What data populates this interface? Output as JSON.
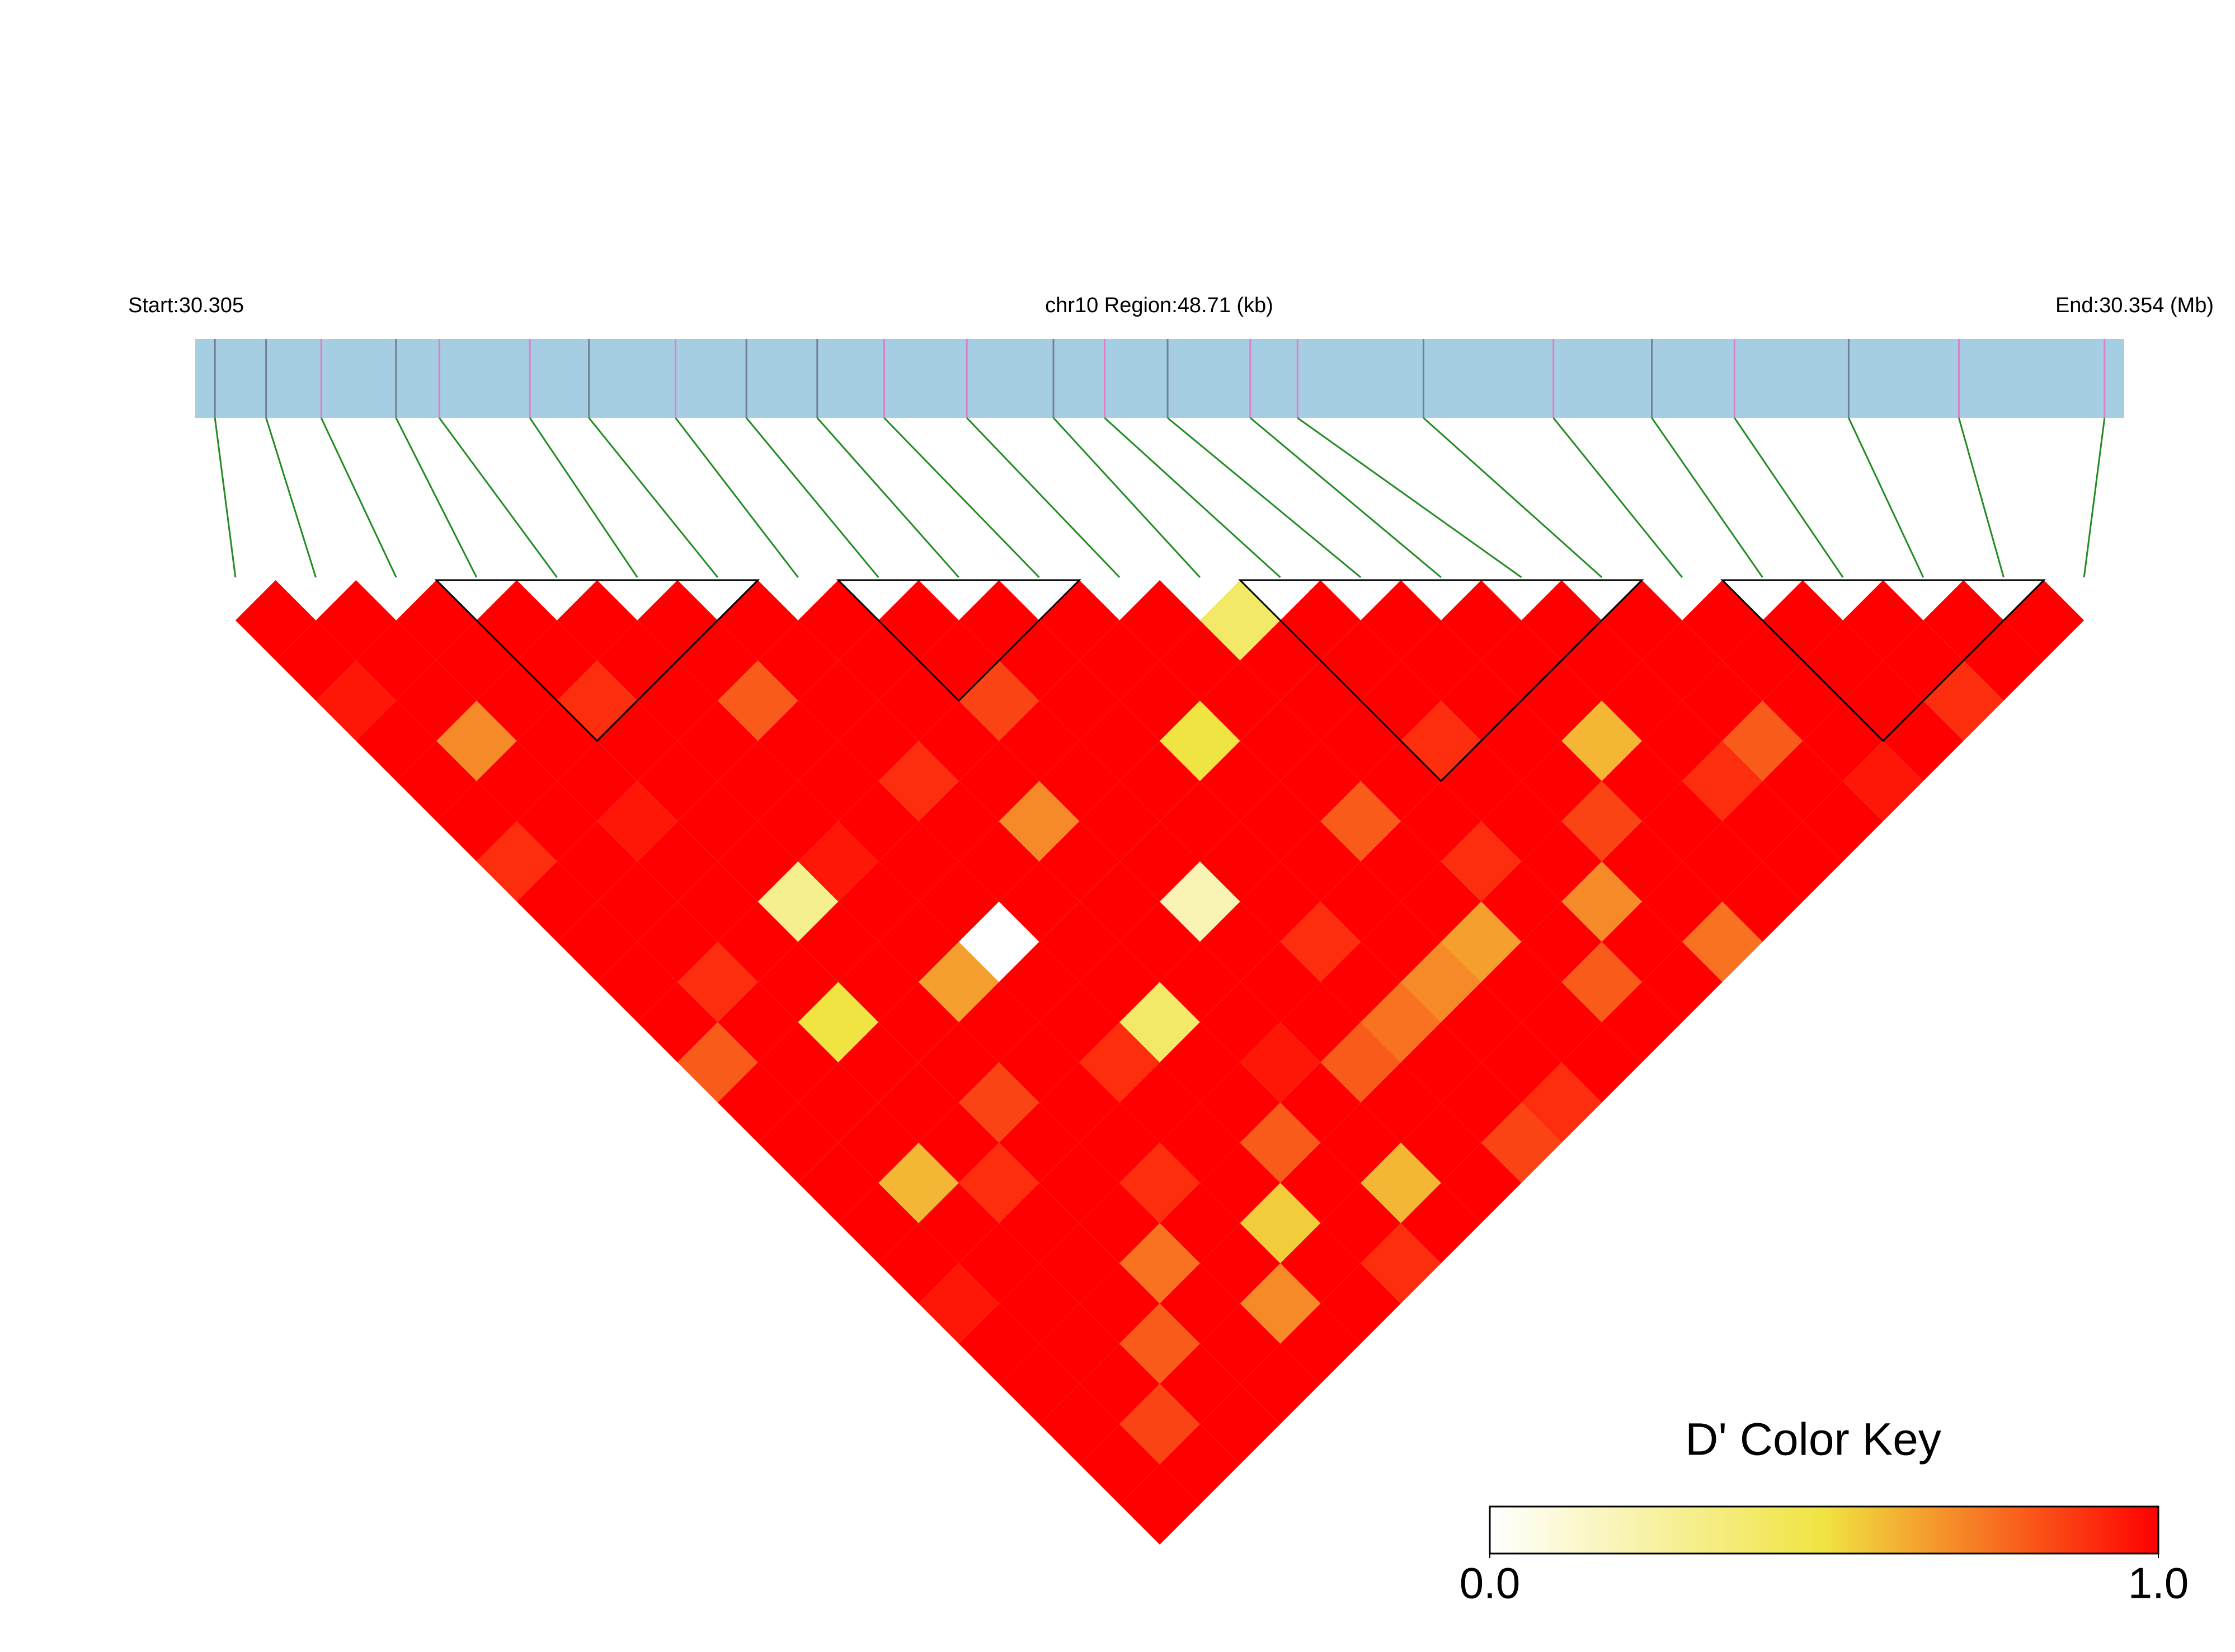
{
  "chart_data": {
    "type": "ld-heatmap",
    "start_label": "Start:30.305",
    "region_label": "chr10 Region:48.71 (kb)",
    "end_label": "End:30.354 (Mb)",
    "xlim": [
      30.305,
      30.354
    ],
    "track_color": "#a6cee3",
    "connector_color": "#228b22",
    "snp_positions": [
      30.3055,
      30.3068,
      30.3082,
      30.3101,
      30.3112,
      30.3135,
      30.315,
      30.3172,
      30.319,
      30.3208,
      30.3225,
      30.3246,
      30.3268,
      30.3281,
      30.3297,
      30.3318,
      30.333,
      30.3362,
      30.3395,
      30.342,
      30.3441,
      30.347,
      30.3498,
      30.3535
    ],
    "snp_colors": [
      "#708090",
      "#708090",
      "#e07cc8",
      "#708090",
      "#e07cc8",
      "#e07cc8",
      "#708090",
      "#e07cc8",
      "#708090",
      "#708090",
      "#e07cc8",
      "#e07cc8",
      "#708090",
      "#e07cc8",
      "#708090",
      "#e07cc8",
      "#e07cc8",
      "#708090",
      "#e07cc8",
      "#708090",
      "#e07cc8",
      "#708090",
      "#e07cc8",
      "#e07cc8"
    ],
    "matrix": [
      [
        1,
        1,
        0.95,
        1,
        1,
        1,
        0.9,
        1,
        1,
        1,
        1,
        0.8,
        1,
        1,
        1,
        1,
        1,
        0.95,
        1,
        1,
        1,
        1,
        1
      ],
      [
        1,
        1,
        1,
        0.7,
        1,
        1,
        1,
        1,
        1,
        0.9,
        1,
        1,
        1,
        1,
        0.6,
        1,
        1,
        1,
        1,
        1,
        0.85,
        1
      ],
      [
        1,
        1,
        1,
        1,
        1,
        0.95,
        1,
        1,
        1,
        1,
        0.5,
        1,
        1,
        1,
        0.9,
        1,
        1,
        1,
        0.8,
        1,
        1
      ],
      [
        1,
        1,
        0.9,
        1,
        1,
        1,
        1,
        0.3,
        1,
        1,
        1,
        1,
        0.85,
        1,
        1,
        1,
        0.75,
        1,
        1,
        1
      ],
      [
        1,
        1,
        1,
        1,
        1,
        1,
        0.95,
        1,
        1,
        0.65,
        1,
        1,
        1,
        1,
        0.9,
        1,
        1,
        0.7,
        1
      ],
      [
        1,
        1,
        0.8,
        1,
        1,
        1,
        1,
        1,
        0,
        1,
        1,
        0.9,
        1,
        1,
        1,
        0.55,
        1,
        1
      ],
      [
        1,
        1,
        1,
        1,
        0.9,
        1,
        1,
        1,
        1,
        1,
        0.4,
        1,
        1,
        0.8,
        1,
        1,
        0.9
      ],
      [
        1,
        1,
        1,
        1,
        1,
        0.7,
        1,
        1,
        1,
        1,
        1,
        0.95,
        1,
        1,
        0.6,
        1
      ],
      [
        1,
        1,
        0.85,
        1,
        1,
        1,
        1,
        0.2,
        1,
        1,
        1,
        0.8,
        1,
        1,
        1
      ],
      [
        1,
        1,
        1,
        1,
        1,
        1,
        1,
        1,
        0.9,
        1,
        0.75,
        1,
        1,
        0.85
      ],
      [
        1,
        1,
        1,
        0.5,
        1,
        1,
        1,
        1,
        1,
        0.7,
        1,
        1,
        0.9
      ],
      [
        1,
        1,
        1,
        1,
        1,
        0.8,
        1,
        1,
        0.65,
        1,
        1,
        1
      ],
      [
        0.4,
        1,
        1,
        1,
        1,
        1,
        0.9,
        1,
        1,
        0.8,
        1
      ],
      [
        1,
        1,
        1,
        0.9,
        1,
        1,
        1,
        0.7,
        1,
        1
      ],
      [
        1,
        1,
        1,
        1,
        1,
        0.85,
        1,
        1,
        0.75
      ],
      [
        1,
        1,
        1,
        0.6,
        1,
        1,
        1,
        1
      ],
      [
        1,
        1,
        1,
        1,
        0.9,
        1,
        1
      ],
      [
        1,
        1,
        1,
        0.8,
        1,
        1
      ],
      [
        1,
        1,
        1,
        1,
        0.95
      ],
      [
        1,
        1,
        1,
        1
      ],
      [
        1,
        1,
        0.9
      ],
      [
        1,
        1
      ],
      [
        1
      ]
    ],
    "blocks": [
      [
        3,
        6
      ],
      [
        8,
        10
      ],
      [
        13,
        17
      ],
      [
        19,
        22
      ]
    ],
    "color_key_title": "D' Color Key",
    "colors": [
      "#ffffff",
      "#f0e442",
      "#ff0000"
    ],
    "clim": [
      0,
      1
    ],
    "color_key_ticks": [
      {
        "value": 0,
        "label": "0.0"
      },
      {
        "value": 1,
        "label": "1.0"
      }
    ]
  }
}
